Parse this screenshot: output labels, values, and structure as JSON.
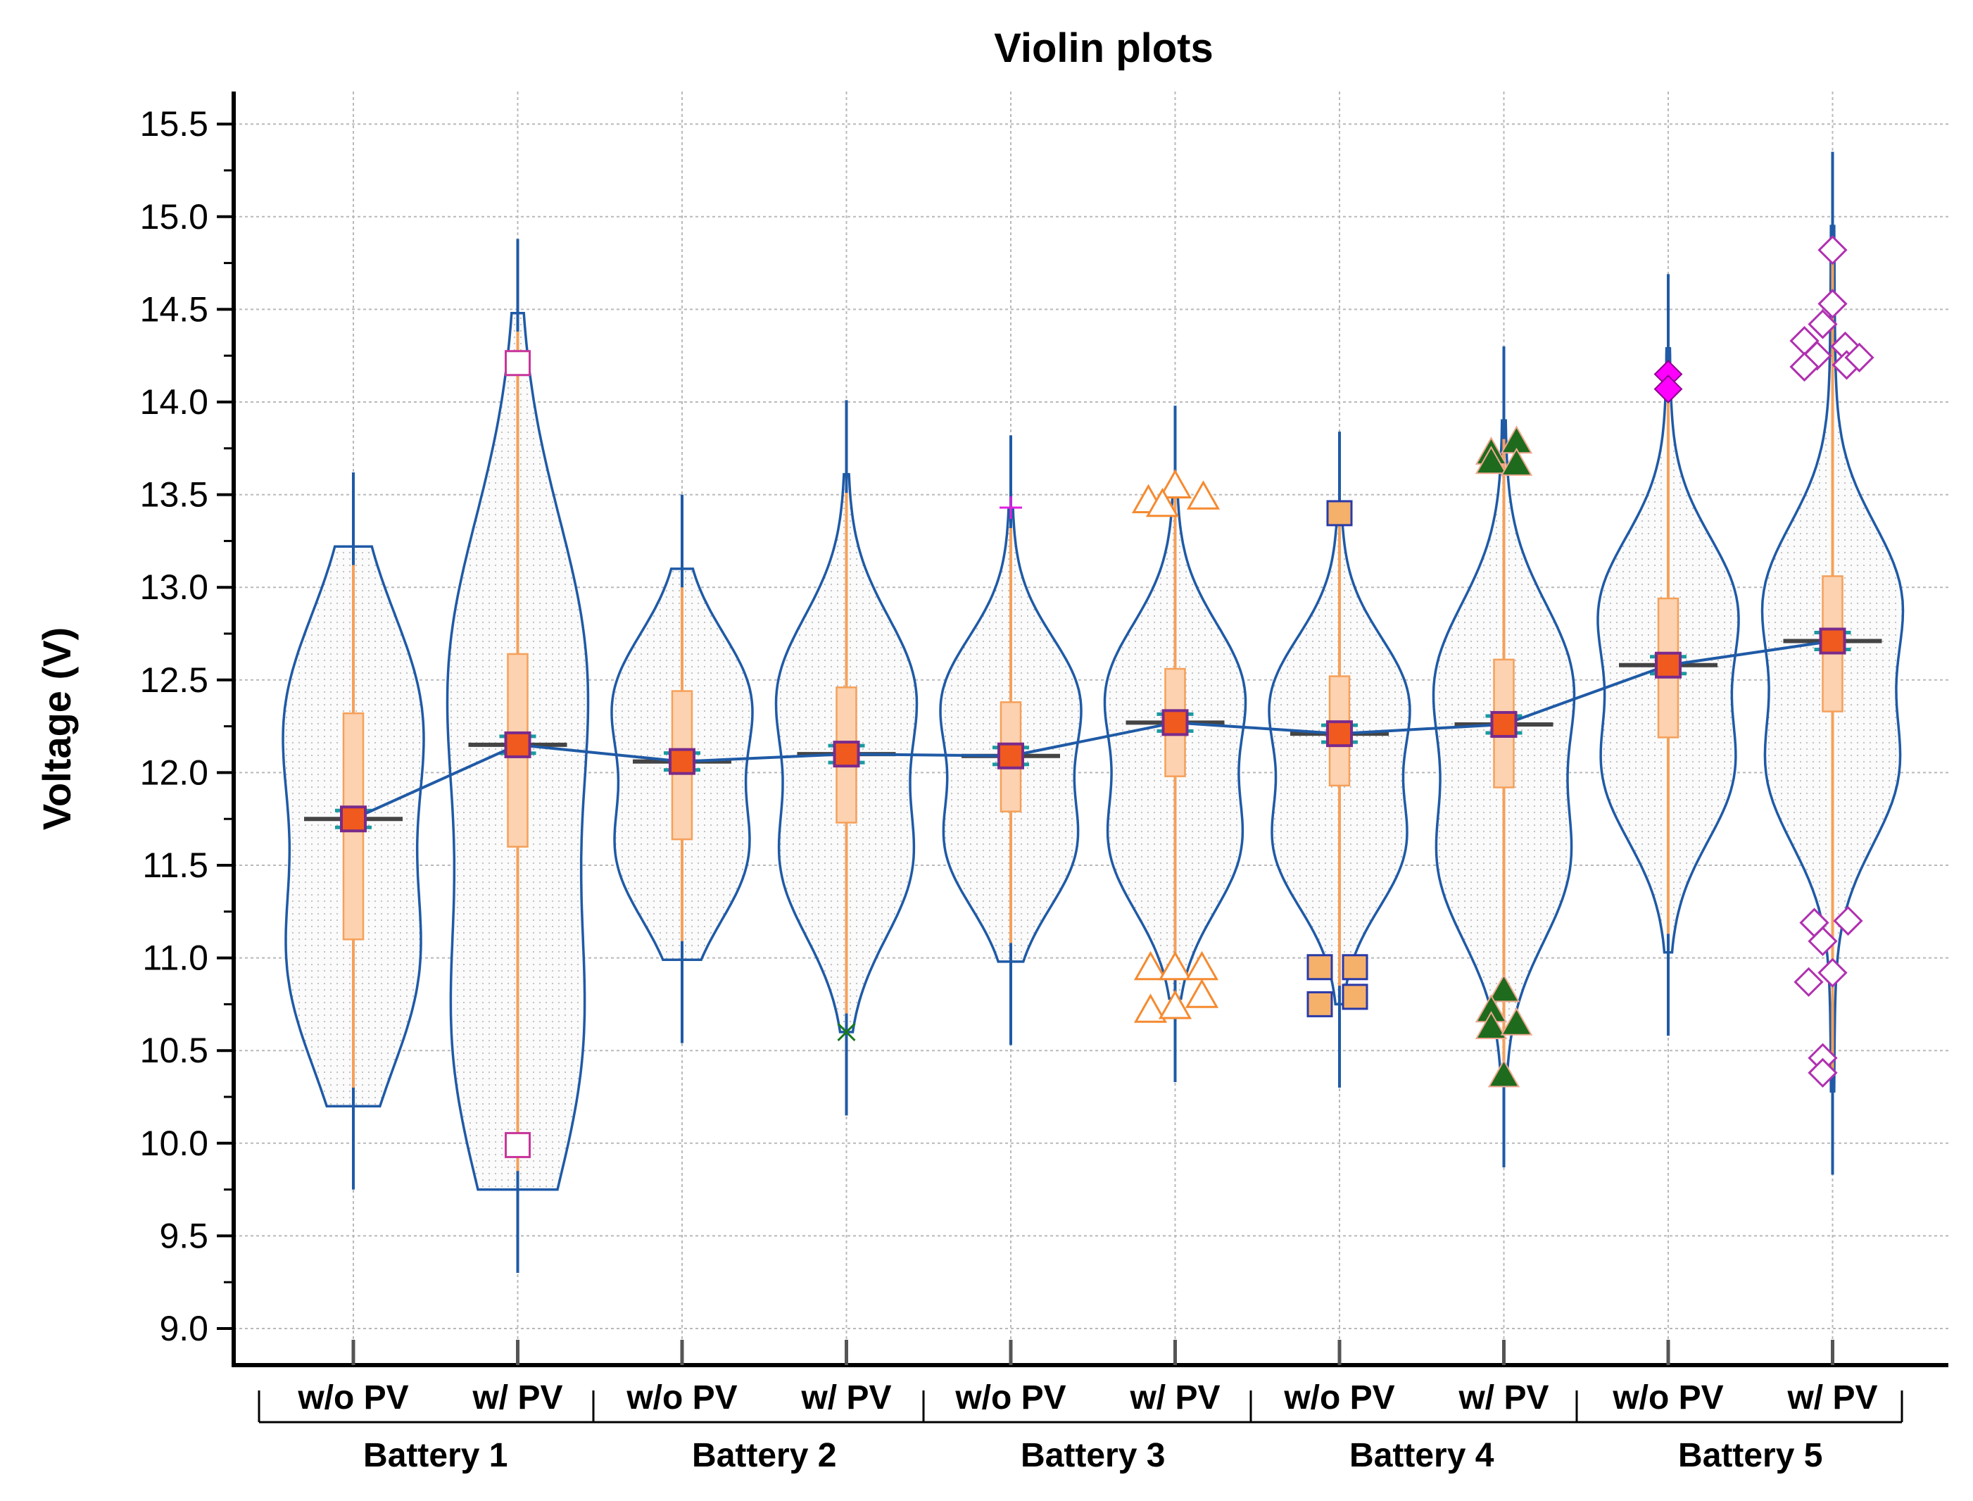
{
  "chart_data": {
    "type": "violin",
    "title": "Violin plots",
    "xlabel": "",
    "ylabel": "Voltage (V)",
    "ylim": [
      8.85,
      15.75
    ],
    "yticks": [
      "9.0",
      "9.5",
      "10.0",
      "10.5",
      "11.0",
      "11.5",
      "12.0",
      "12.5",
      "13.0",
      "13.5",
      "14.0",
      "14.5",
      "15.0",
      "15.5"
    ],
    "grid": true,
    "categories": [
      "w/o PV",
      "w/ PV",
      "w/o PV",
      "w/ PV",
      "w/o PV",
      "w/ PV",
      "w/o PV",
      "w/ PV",
      "w/o PV",
      "w/ PV"
    ],
    "groups": [
      "Battery 1",
      "Battery 2",
      "Battery 3",
      "Battery 4",
      "Battery 5"
    ],
    "mean_line_color": "#1f5aa6",
    "violin_color": "#1f5aa6",
    "box_color": "#f5a05a",
    "series": [
      {
        "name": "Battery 1 w/o PV",
        "group": "Battery 1",
        "mean": 11.75,
        "median": 11.75,
        "q1": 11.1,
        "q3": 12.32,
        "whisker_low": 9.75,
        "whisker_high": 13.62,
        "modes": [
          10.95,
          12.3
        ],
        "marker_shape": "square",
        "marker_color": "#c8359a",
        "outliers": []
      },
      {
        "name": "Battery 1 w/ PV",
        "group": "Battery 1",
        "mean": 12.15,
        "median": 12.15,
        "q1": 11.6,
        "q3": 12.64,
        "whisker_low": 9.3,
        "whisker_high": 14.88,
        "modes": [
          10.55,
          12.55
        ],
        "marker_shape": "square",
        "marker_color": "#c8359a",
        "outliers": [
          14.21,
          9.99
        ]
      },
      {
        "name": "Battery 2 w/o PV",
        "group": "Battery 2",
        "mean": 12.06,
        "median": 12.06,
        "q1": 11.64,
        "q3": 12.44,
        "whisker_low": 10.54,
        "whisker_high": 13.5,
        "modes": [
          11.55,
          12.4
        ],
        "marker_shape": "x",
        "marker_color": "#1a7a1a",
        "outliers": []
      },
      {
        "name": "Battery 2 w/ PV",
        "group": "Battery 2",
        "mean": 12.1,
        "median": 12.1,
        "q1": 11.73,
        "q3": 12.46,
        "whisker_low": 10.15,
        "whisker_high": 14.01,
        "modes": [
          11.5,
          12.45
        ],
        "marker_shape": "x",
        "marker_color": "#1a7a1a",
        "outliers": [
          10.6
        ]
      },
      {
        "name": "Battery 3 w/o PV",
        "group": "Battery 3",
        "mean": 12.09,
        "median": 12.09,
        "q1": 11.79,
        "q3": 12.38,
        "whisker_low": 10.53,
        "whisker_high": 13.82,
        "modes": [
          11.6,
          12.4
        ],
        "marker_shape": "plus",
        "marker_color": "#e020e0",
        "outliers": [
          13.43
        ]
      },
      {
        "name": "Battery 3 w/ PV",
        "group": "Battery 3",
        "mean": 12.27,
        "median": 12.27,
        "q1": 11.98,
        "q3": 12.56,
        "whisker_low": 10.33,
        "whisker_high": 13.98,
        "modes": [
          11.6,
          12.45
        ],
        "marker_shape": "triangle-open",
        "marker_color": "#f58a30",
        "outliers": [
          13.47,
          13.55,
          13.49,
          13.45,
          10.95,
          10.95,
          10.95,
          10.72,
          10.74,
          10.8
        ]
      },
      {
        "name": "Battery 4 w/o PV",
        "group": "Battery 4",
        "mean": 12.21,
        "median": 12.21,
        "q1": 11.93,
        "q3": 12.52,
        "whisker_low": 10.3,
        "whisker_high": 13.84,
        "modes": [
          11.6,
          12.4
        ],
        "marker_shape": "square-filled",
        "marker_color": "#f5b06a",
        "outliers": [
          13.4,
          10.95,
          10.95,
          10.75,
          10.79
        ]
      },
      {
        "name": "Battery 4 w/ PV",
        "group": "Battery 4",
        "mean": 12.26,
        "median": 12.26,
        "q1": 11.92,
        "q3": 12.61,
        "whisker_low": 9.87,
        "whisker_high": 14.3,
        "modes": [
          11.5,
          12.5
        ],
        "marker_shape": "triangle-filled",
        "marker_color": "#1e6b1e",
        "outliers": [
          13.73,
          13.79,
          13.68,
          13.67,
          10.83,
          10.72,
          10.63,
          10.65,
          10.37
        ]
      },
      {
        "name": "Battery 5 w/o PV",
        "group": "Battery 5",
        "mean": 12.58,
        "median": 12.58,
        "q1": 12.19,
        "q3": 12.94,
        "whisker_low": 10.58,
        "whisker_high": 14.69,
        "modes": [
          12.0,
          12.9
        ],
        "marker_shape": "diamond-filled",
        "marker_color": "#ff00ff",
        "outliers": [
          14.15,
          14.07
        ]
      },
      {
        "name": "Battery 5 w/ PV",
        "group": "Battery 5",
        "mean": 12.71,
        "median": 12.71,
        "q1": 12.33,
        "q3": 13.06,
        "whisker_low": 9.83,
        "whisker_high": 15.35,
        "modes": [
          12.0,
          12.95
        ],
        "marker_shape": "diamond-open",
        "marker_color": "#b030b0",
        "outliers": [
          14.82,
          14.53,
          14.42,
          14.3,
          14.33,
          14.25,
          14.2,
          14.19,
          14.24,
          11.19,
          11.2,
          11.09,
          10.87,
          10.92,
          10.46,
          10.38
        ]
      }
    ]
  }
}
